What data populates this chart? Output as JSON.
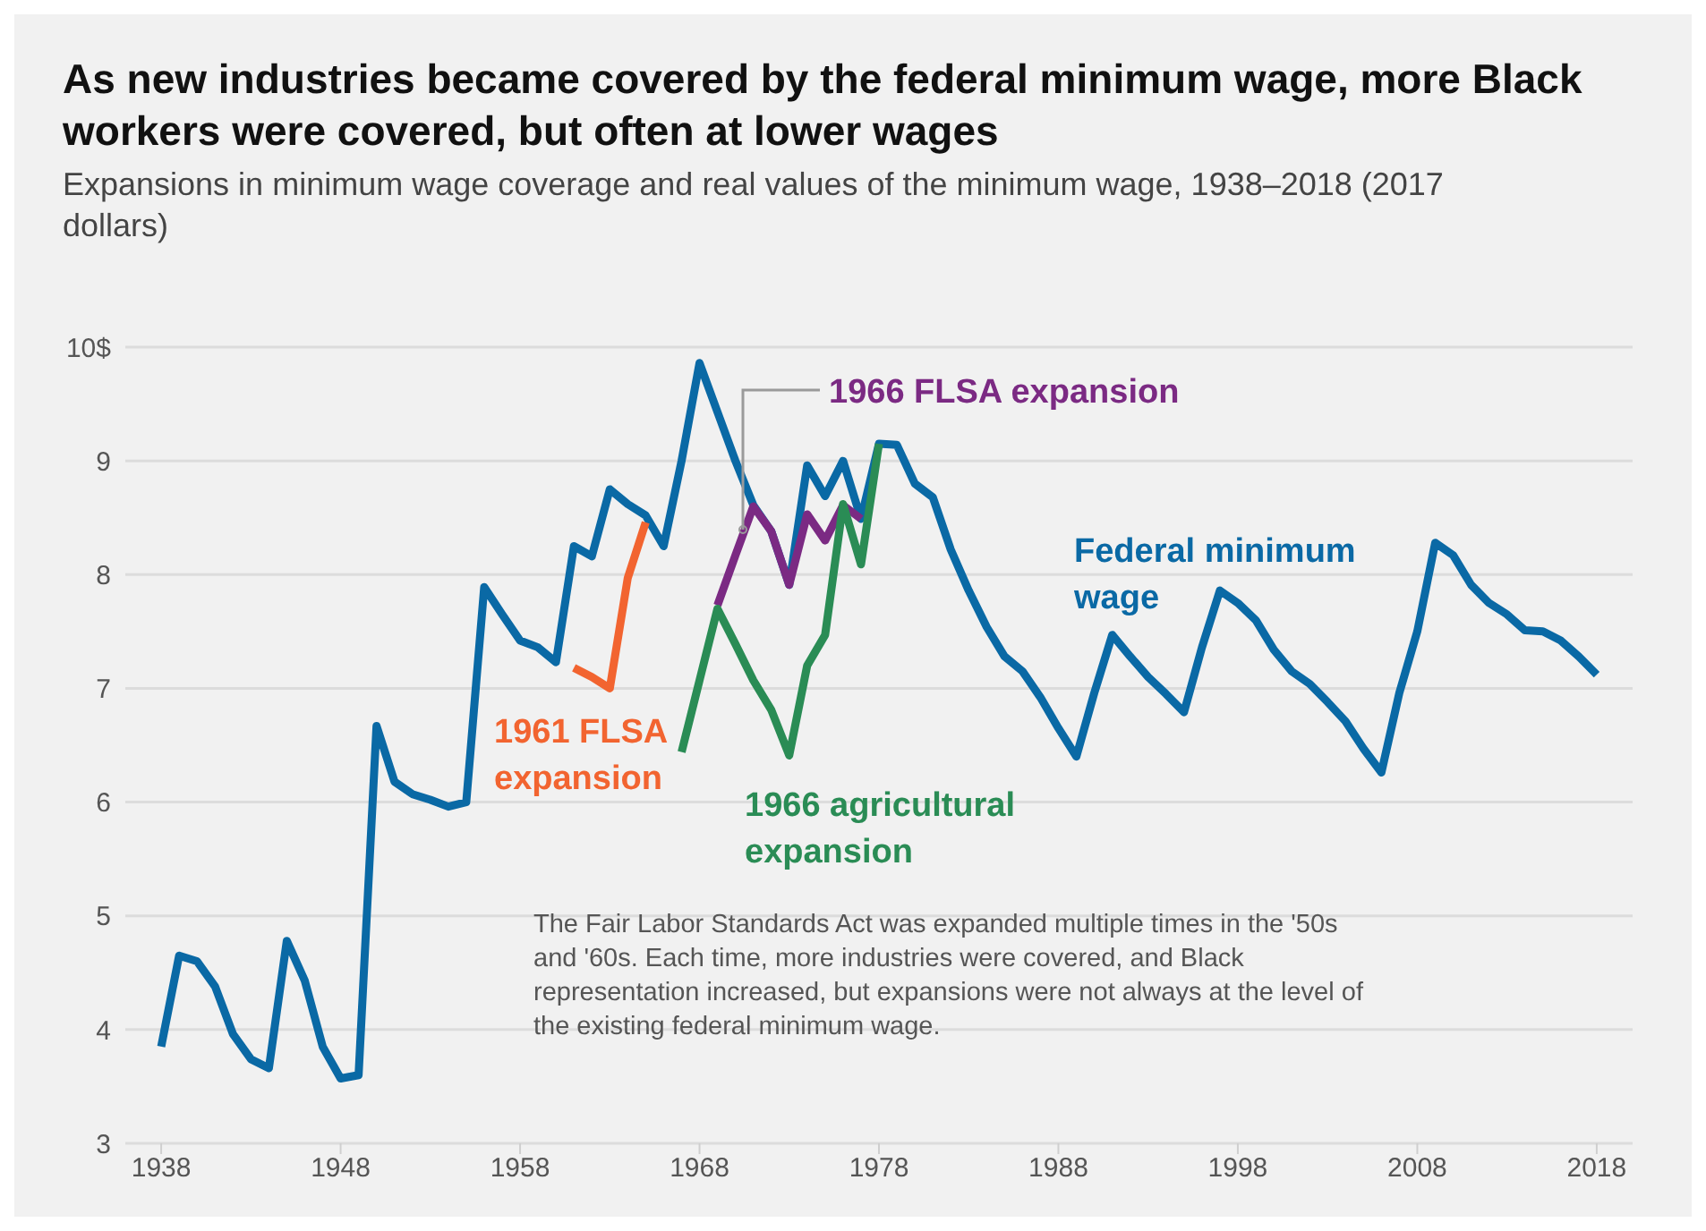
{
  "chart_data": {
    "type": "line",
    "title": "As new industries became covered by the federal minimum wage, more Black workers were covered, but often at lower wages",
    "subtitle": "Expansions in minimum wage coverage and real values of the minimum wage, 1938–2018 (2017 dollars)",
    "annotations": [
      "The Fair Labor Standards Act was expanded multiple times in the '50s and '60s. Each time, more industries were covered, and Black representation increased, but expansions were not always at the level of the existing federal minimum wage."
    ],
    "xlim": [
      1936,
      2020
    ],
    "xticks": [
      1938,
      1948,
      1958,
      1968,
      1978,
      1988,
      1998,
      2008,
      2018
    ],
    "ylim": [
      3,
      10
    ],
    "yticks": [
      3,
      4,
      5,
      6,
      7,
      8,
      9,
      {
        "value": 10,
        "label": "10$"
      }
    ],
    "grid": "y",
    "series": [
      {
        "name": "Federal minimum wage",
        "color": "#0a69a5",
        "x": [
          1938,
          1939,
          1940,
          1941,
          1942,
          1943,
          1944,
          1945,
          1946,
          1947,
          1948,
          1949,
          1950,
          1951,
          1952,
          1953,
          1954,
          1955,
          1956,
          1957,
          1958,
          1959,
          1960,
          1961,
          1962,
          1963,
          1964,
          1965,
          1966,
          1967,
          1968,
          1969,
          1970,
          1971,
          1972,
          1973,
          1974,
          1975,
          1976,
          1977,
          1978,
          1979,
          1980,
          1981,
          1982,
          1983,
          1984,
          1985,
          1986,
          1987,
          1988,
          1989,
          1990,
          1991,
          1992,
          1993,
          1994,
          1995,
          1996,
          1997,
          1998,
          1999,
          2000,
          2001,
          2002,
          2003,
          2004,
          2005,
          2006,
          2007,
          2008,
          2009,
          2010,
          2011,
          2012,
          2013,
          2014,
          2015,
          2016,
          2017,
          2018
        ],
        "values": [
          3.85,
          4.65,
          4.6,
          4.38,
          3.96,
          3.74,
          3.66,
          4.78,
          4.43,
          3.85,
          3.57,
          3.6,
          6.67,
          6.18,
          6.07,
          6.02,
          5.96,
          6.0,
          7.89,
          7.65,
          7.42,
          7.36,
          7.23,
          8.25,
          8.16,
          8.75,
          8.62,
          8.52,
          8.25,
          9.0,
          9.86,
          9.43,
          9.0,
          8.61,
          8.38,
          7.91,
          8.96,
          8.69,
          9.0,
          8.49,
          9.15,
          9.14,
          8.8,
          8.68,
          8.22,
          7.86,
          7.54,
          7.28,
          7.15,
          6.92,
          6.65,
          6.4,
          6.96,
          7.47,
          7.28,
          7.1,
          6.95,
          6.79,
          7.36,
          7.86,
          7.75,
          7.6,
          7.34,
          7.15,
          7.04,
          6.88,
          6.71,
          6.47,
          6.26,
          6.96,
          7.5,
          8.28,
          8.17,
          7.91,
          7.75,
          7.65,
          7.51,
          7.5,
          7.42,
          7.28,
          7.12
        ]
      },
      {
        "name": "1961 FLSA expansion",
        "color": "#f26430",
        "x": [
          1961,
          1962,
          1963,
          1964,
          1965
        ],
        "values": [
          7.18,
          7.1,
          7.0,
          7.97,
          8.46
        ]
      },
      {
        "name": "1966 FLSA expansion",
        "color": "#7b2a83",
        "x": [
          1969,
          1970,
          1971,
          1972,
          1973,
          1974,
          1975,
          1976,
          1977
        ],
        "values": [
          7.73,
          8.17,
          8.6,
          8.38,
          7.91,
          8.53,
          8.3,
          8.61,
          8.49
        ]
      },
      {
        "name": "1966 agricultural expansion",
        "color": "#2a8c55",
        "x": [
          1967,
          1968,
          1969,
          1970,
          1971,
          1972,
          1973,
          1974,
          1975,
          1976,
          1977,
          1978
        ],
        "values": [
          6.44,
          7.07,
          7.7,
          7.39,
          7.07,
          6.81,
          6.41,
          7.2,
          7.47,
          8.62,
          8.09,
          9.15
        ]
      }
    ]
  }
}
